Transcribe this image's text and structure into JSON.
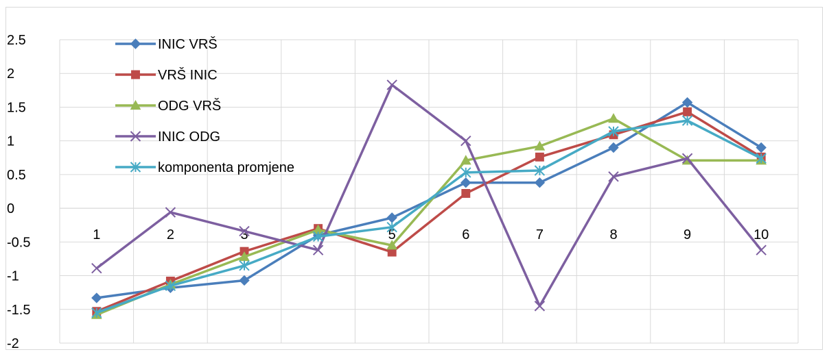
{
  "chart_data": {
    "type": "line",
    "categories": [
      "1",
      "2",
      "3",
      "4",
      "5",
      "6",
      "7",
      "8",
      "9",
      "10"
    ],
    "ylim": [
      -2,
      2.5
    ],
    "yticks": [
      "2.5",
      "2",
      "1.5",
      "1",
      "0.5",
      "0",
      "-0.5",
      "-1",
      "-1.5",
      "-2"
    ],
    "grid": true,
    "legend_position": "top-left",
    "series": [
      {
        "name": "INIC VRŠ",
        "color": "#4a7ebb",
        "marker": "diamond",
        "values": [
          -1.33,
          -1.18,
          -1.07,
          -0.4,
          -0.14,
          0.38,
          0.38,
          0.9,
          1.57,
          0.9
        ]
      },
      {
        "name": "VRŠ INIC",
        "color": "#be4b48",
        "marker": "square",
        "values": [
          -1.53,
          -1.08,
          -0.64,
          -0.3,
          -0.65,
          0.22,
          0.76,
          1.09,
          1.43,
          0.76
        ]
      },
      {
        "name": "ODG VRŠ",
        "color": "#98b954",
        "marker": "triangle",
        "values": [
          -1.58,
          -1.13,
          -0.72,
          -0.32,
          -0.55,
          0.71,
          0.92,
          1.33,
          0.71,
          0.71
        ]
      },
      {
        "name": "INIC ODG",
        "color": "#7d5fa0",
        "marker": "x",
        "values": [
          -0.89,
          -0.06,
          -0.34,
          -0.62,
          1.83,
          1.0,
          -1.45,
          0.47,
          0.74,
          -0.62
        ]
      },
      {
        "name": "komponenta promjene",
        "color": "#46aac5",
        "marker": "star",
        "values": [
          -1.55,
          -1.15,
          -0.85,
          -0.42,
          -0.28,
          0.53,
          0.56,
          1.14,
          1.3,
          0.74
        ]
      }
    ]
  }
}
